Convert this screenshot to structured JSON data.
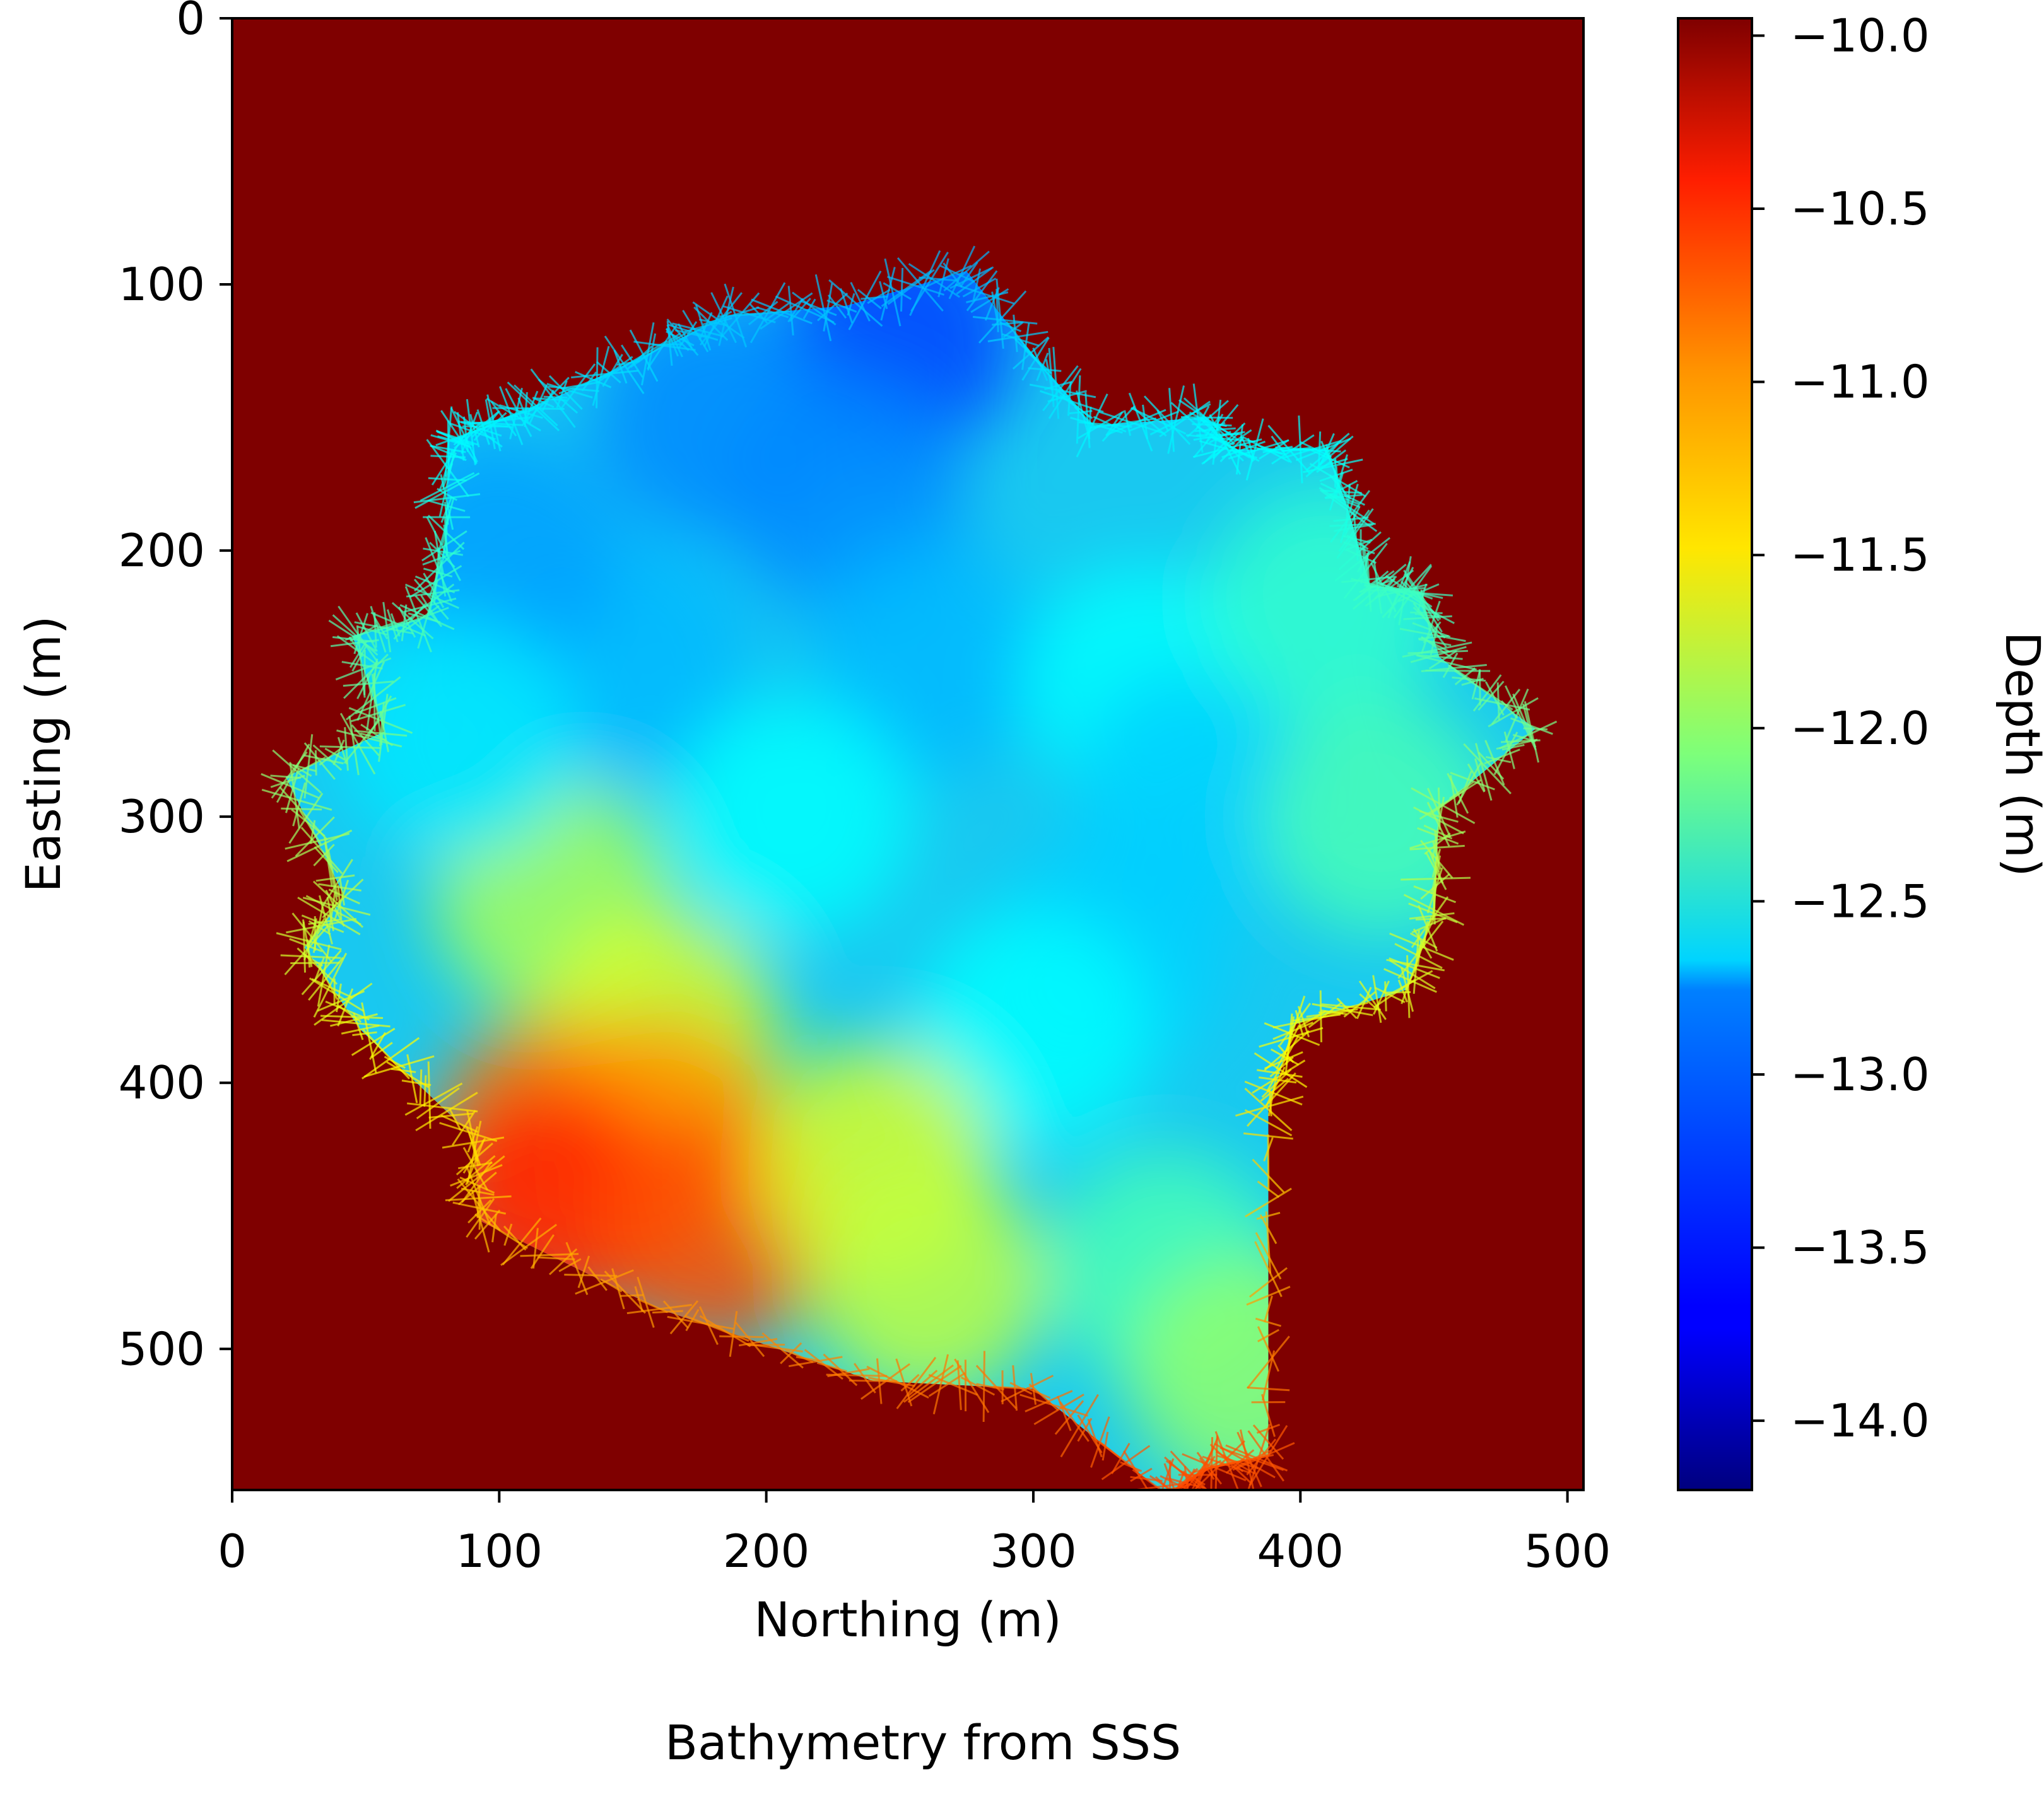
{
  "caption": "Bathymetry from SSS",
  "chart_data": {
    "type": "heatmap",
    "xlabel": "Northing (m)",
    "ylabel": "Easting (m)",
    "xlim": [
      0,
      506
    ],
    "ylim": [
      553,
      0
    ],
    "x_ticks": [
      0,
      100,
      200,
      300,
      400,
      500
    ],
    "y_ticks": [
      0,
      100,
      200,
      300,
      400,
      500
    ],
    "grid": false,
    "background_value": -10.0,
    "colormap": "jet",
    "colorbar": {
      "label": "Depth (m)",
      "range": [
        -14.2,
        -9.95
      ],
      "ticks": [
        -10.0,
        -10.5,
        -11.0,
        -11.5,
        -12.0,
        -12.5,
        -13.0,
        -13.5,
        -14.0
      ],
      "tick_labels": [
        "−10.0",
        "−10.5",
        "−11.0",
        "−11.5",
        "−12.0",
        "−12.5",
        "−13.0",
        "−13.5",
        "−14.0"
      ]
    },
    "survey_outline": [
      [
        27,
        349
      ],
      [
        42,
        330
      ],
      [
        20,
        285
      ],
      [
        57,
        268
      ],
      [
        45,
        232
      ],
      [
        73,
        225
      ],
      [
        80,
        196
      ],
      [
        81,
        159
      ],
      [
        98,
        152
      ],
      [
        122,
        142
      ],
      [
        160,
        124
      ],
      [
        185,
        112
      ],
      [
        230,
        108
      ],
      [
        275,
        95
      ],
      [
        300,
        127
      ],
      [
        322,
        153
      ],
      [
        365,
        150
      ],
      [
        373,
        162
      ],
      [
        410,
        162
      ],
      [
        418,
        185
      ],
      [
        426,
        213
      ],
      [
        445,
        216
      ],
      [
        452,
        240
      ],
      [
        488,
        267
      ],
      [
        452,
        297
      ],
      [
        450,
        335
      ],
      [
        440,
        365
      ],
      [
        398,
        378
      ],
      [
        388,
        410
      ],
      [
        388,
        540
      ],
      [
        365,
        545
      ],
      [
        350,
        555
      ],
      [
        300,
        515
      ],
      [
        240,
        512
      ],
      [
        160,
        485
      ],
      [
        93,
        452
      ],
      [
        90,
        420
      ],
      [
        48,
        380
      ]
    ],
    "depth_samples": [
      [
        250,
        120,
        -13.4
      ],
      [
        180,
        150,
        -13.1
      ],
      [
        230,
        180,
        -13.1
      ],
      [
        260,
        240,
        -12.9
      ],
      [
        150,
        240,
        -12.9
      ],
      [
        100,
        200,
        -13.0
      ],
      [
        210,
        300,
        -12.6
      ],
      [
        340,
        250,
        -12.6
      ],
      [
        360,
        290,
        -12.8
      ],
      [
        330,
        350,
        -12.8
      ],
      [
        300,
        380,
        -12.6
      ],
      [
        120,
        330,
        -11.9
      ],
      [
        160,
        380,
        -11.7
      ],
      [
        120,
        420,
        -11.0
      ],
      [
        160,
        420,
        -11.1
      ],
      [
        120,
        445,
        -10.6
      ],
      [
        180,
        455,
        -10.8
      ],
      [
        240,
        430,
        -11.7
      ],
      [
        260,
        475,
        -11.8
      ],
      [
        350,
        470,
        -12.3
      ],
      [
        380,
        510,
        -12.0
      ],
      [
        85,
        270,
        -12.7
      ],
      [
        410,
        220,
        -12.4
      ],
      [
        430,
        300,
        -12.3
      ]
    ]
  }
}
